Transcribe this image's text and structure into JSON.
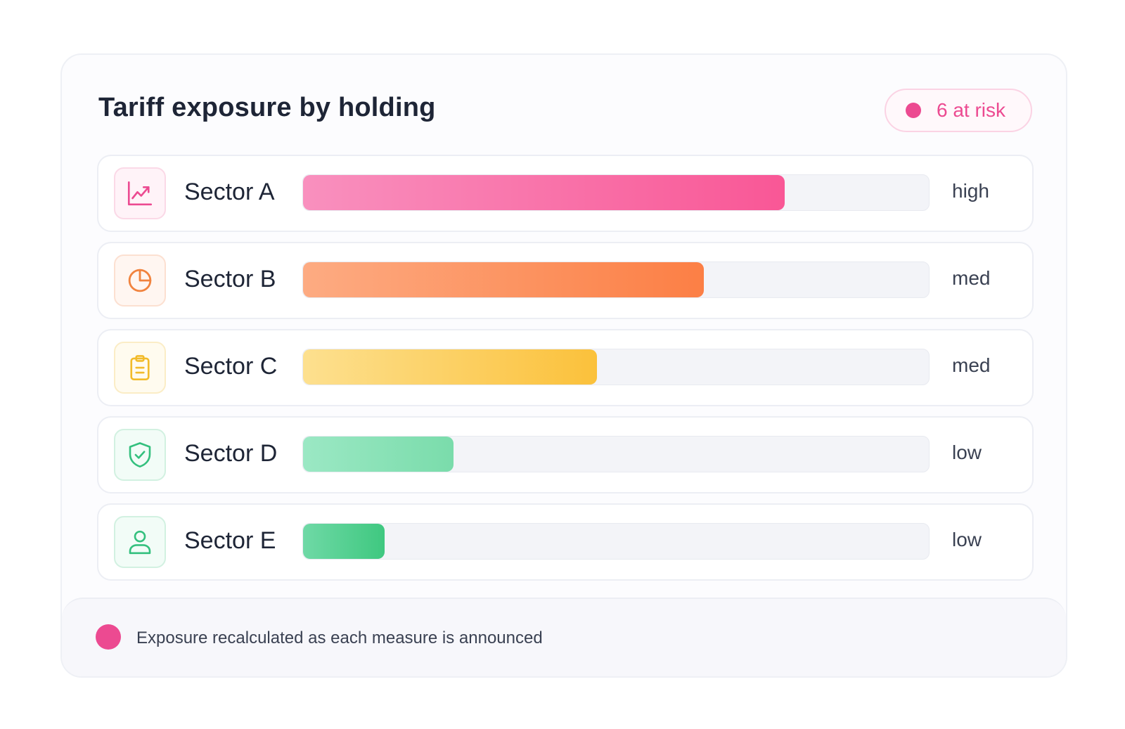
{
  "title": "Tariff exposure by holding",
  "badge": {
    "text": "6 at risk",
    "color": "#ec4a91"
  },
  "holdings": [
    {
      "label": "Sector A",
      "level": "high",
      "exposure": 0.77,
      "icon": "trend-chart-icon",
      "color": "#ec4a91",
      "grad_from": "#f990be",
      "grad_to": "#f95796",
      "icon_bg": "#fff3f8",
      "icon_border": "#fbd9e7"
    },
    {
      "label": "Sector B",
      "level": "med",
      "exposure": 0.64,
      "icon": "pie-chart-icon",
      "color": "#f1833e",
      "grad_from": "#fdab82",
      "grad_to": "#fc7f45",
      "icon_bg": "#fff6f1",
      "icon_border": "#fce0d1"
    },
    {
      "label": "Sector C",
      "level": "med",
      "exposure": 0.47,
      "icon": "clipboard-icon",
      "color": "#f2bb2a",
      "grad_from": "#fde08f",
      "grad_to": "#fbc13b",
      "icon_bg": "#fffbef",
      "icon_border": "#fbedc6"
    },
    {
      "label": "Sector D",
      "level": "low",
      "exposure": 0.24,
      "icon": "shield-check-icon",
      "color": "#34c07e",
      "grad_from": "#9be8c4",
      "grad_to": "#7adcab",
      "icon_bg": "#f2fcf7",
      "icon_border": "#d2f1e1"
    },
    {
      "label": "Sector E",
      "level": "low",
      "exposure": 0.13,
      "icon": "user-icon",
      "color": "#34c07e",
      "grad_from": "#6fd9a6",
      "grad_to": "#3fc880",
      "icon_bg": "#f2fcf7",
      "icon_border": "#d2f1e1"
    }
  ],
  "footer": {
    "text": "Exposure recalculated as each measure is announced",
    "dot_color": "#ec4a91"
  }
}
